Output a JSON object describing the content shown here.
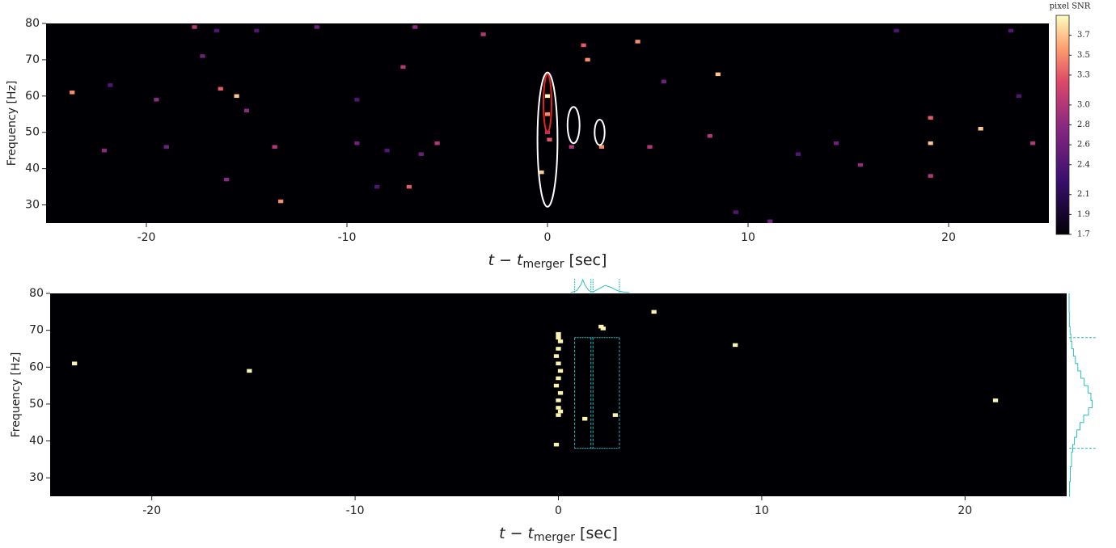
{
  "chart_data": [
    {
      "type": "heatmap",
      "colormap": "magma",
      "xlabel": [
        "t − t",
        "merger",
        " [sec]"
      ],
      "ylabel": "Frequency [Hz]",
      "xlim": [
        -25,
        25
      ],
      "ylim": [
        25,
        80
      ],
      "xticks": [
        -20,
        -10,
        0,
        10,
        20
      ],
      "yticks": [
        30,
        40,
        50,
        60,
        70,
        80
      ],
      "colorbar_title": "pixel SNR",
      "clim": [
        1.7,
        3.9
      ],
      "colorbar_ticks": [
        1.7,
        1.9,
        2.1,
        2.4,
        2.6,
        2.8,
        {
          "value": 3.0,
          "label": "3.0"
        },
        3.3,
        3.5,
        3.7
      ],
      "x": [
        -23.7,
        -22.1,
        -21.8,
        -19.5,
        -19,
        -17.6,
        -17.2,
        -16.5,
        -16,
        -16.3,
        -15.5,
        -15,
        -14.5,
        -13.3,
        -13.6,
        -11.5,
        -9.5,
        -9.5,
        -8.5,
        -8,
        -7.2,
        -6.9,
        -6.6,
        -6.3,
        -5.5,
        -3.2,
        -0.3,
        0,
        0,
        0,
        0.1,
        1.2,
        1.8,
        2,
        2.7,
        4.5,
        5.8,
        5.1,
        8.1,
        8.5,
        9.4,
        11.1,
        12.5,
        14.4,
        15.6,
        17.4,
        19.1,
        19.1,
        19.1,
        21.6,
        23.1,
        24.2,
        23.5
      ],
      "y": [
        61,
        45,
        63,
        59,
        46,
        79,
        71,
        78,
        37,
        62,
        60,
        56,
        78,
        31,
        46,
        79,
        47,
        59,
        35,
        45,
        68,
        35,
        79,
        44,
        47,
        77,
        39,
        60,
        55,
        50,
        48,
        46,
        74,
        70,
        46,
        75,
        64,
        46,
        49,
        66,
        28,
        25.5,
        44,
        47,
        41,
        78,
        38,
        54,
        47,
        51,
        78,
        47,
        60
      ],
      "values": [
        3.5,
        2.8,
        2.4,
        2.8,
        2.6,
        3.0,
        2.6,
        2.4,
        2.8,
        3.3,
        3.7,
        2.8,
        2.4,
        3.5,
        3.0,
        2.6,
        2.6,
        2.4,
        2.4,
        2.4,
        3.0,
        3.3,
        2.8,
        2.6,
        3.0,
        3.0,
        3.7,
        3.9,
        3.5,
        3.0,
        3.3,
        3.0,
        3.3,
        3.5,
        3.5,
        3.5,
        2.6,
        3.0,
        3.0,
        3.7,
        2.4,
        2.6,
        2.4,
        2.6,
        2.8,
        2.4,
        3.0,
        3.3,
        3.7,
        3.7,
        2.4,
        3.0,
        2.4
      ],
      "contours": [
        {
          "color": "#ffffff",
          "x": 0,
          "y": 48,
          "rx": 0.5,
          "ry": 18.5
        },
        {
          "color": "#ffffff",
          "x": 1.3,
          "y": 52,
          "rx": 0.3,
          "ry": 5
        },
        {
          "color": "#ffffff",
          "x": 2.6,
          "y": 50,
          "rx": 0.25,
          "ry": 3.5
        },
        {
          "color": "#e8201e",
          "x": 0,
          "y": 58,
          "rx": 0.2,
          "ry": 8
        }
      ]
    },
    {
      "type": "mask",
      "color": "#fbf3b0",
      "box_color": "#2bbfbf",
      "xlabel": [
        "t − t",
        "merger",
        " [sec]"
      ],
      "ylabel": "Frequency [Hz]",
      "xlim": [
        -25,
        25
      ],
      "ylim": [
        25,
        80
      ],
      "xticks": [
        -20,
        -10,
        0,
        10,
        20
      ],
      "yticks": [
        30,
        40,
        50,
        60,
        70,
        80
      ],
      "x": [
        -23.8,
        -15.2,
        -0.1,
        0,
        1.3,
        2.1,
        2.2,
        2.8,
        4.7,
        8.7,
        21.5,
        0,
        0,
        0.1,
        0,
        -0.1,
        0,
        0.1,
        0,
        -0.1,
        0.1,
        0,
        0,
        0.1
      ],
      "y": [
        61,
        59,
        39,
        47,
        46,
        71,
        70.5,
        47,
        75,
        66,
        51,
        69,
        68,
        67,
        65,
        63,
        61,
        59,
        57,
        55,
        53,
        51,
        49,
        48
      ],
      "box_x": [
        0.8,
        1.6,
        1.7,
        3.0
      ],
      "box_ylim": [
        38,
        68
      ],
      "x_marginal": {
        "x": [
          0.6,
          0.9,
          1.1,
          1.2,
          1.3,
          1.5,
          1.7,
          2.0,
          2.3,
          2.6,
          2.9,
          3.2,
          3.5
        ],
        "values": [
          0,
          0.15,
          0.6,
          1,
          0.6,
          0.15,
          0.05,
          0.3,
          0.55,
          0.4,
          0.15,
          0.05,
          0
        ]
      },
      "y_marginal": {
        "y": [
          25,
          29,
          33,
          37,
          39,
          41,
          43,
          45,
          47,
          49,
          51,
          53,
          55,
          57,
          59,
          61,
          63,
          65,
          67,
          69,
          71,
          75,
          80
        ],
        "values": [
          0,
          0.02,
          0.05,
          0.1,
          0.15,
          0.22,
          0.32,
          0.45,
          0.6,
          0.8,
          0.95,
          0.9,
          0.78,
          0.62,
          0.48,
          0.36,
          0.26,
          0.18,
          0.11,
          0.07,
          0.04,
          0.01,
          0
        ]
      }
    }
  ]
}
